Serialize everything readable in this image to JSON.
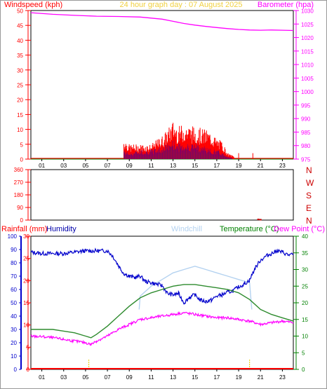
{
  "header": {
    "left_title": "Windspeed (kph)",
    "center_title": "24 hour graph day : 07 August 2025",
    "right_title": "Barometer (hpa)"
  },
  "bottom_header": {
    "rainfall": "Rainfall (mm)",
    "humidity": "Humidity",
    "windchill": "Windchill",
    "temperature": "Temperature (°C)",
    "dewpoint": "Dew Point (°C)"
  },
  "colors": {
    "windspeed": "#ff0000",
    "gust": "#0000cc",
    "average": "#008000",
    "barometer": "#ff00ff",
    "direction": "#cc0000",
    "humidity": "#0000cc",
    "windchill": "#b4d2f0",
    "temperature": "#2e8b2e",
    "dewpoint": "#ff00ff",
    "rainfall": "#ff0000"
  },
  "chart_data": [
    {
      "type": "line",
      "name": "wind-barometer",
      "x_ticks": [
        "01",
        "03",
        "05",
        "07",
        "09",
        "11",
        "13",
        "15",
        "17",
        "19",
        "21",
        "23"
      ],
      "xlim": [
        0,
        24
      ],
      "ylim_left": [
        0,
        50
      ],
      "yticks_left": [
        0,
        5,
        10,
        15,
        20,
        25,
        30,
        35,
        40,
        45,
        50
      ],
      "ylim_right": [
        975,
        1030
      ],
      "yticks_right": [
        975,
        980,
        985,
        990,
        995,
        1000,
        1005,
        1010,
        1015,
        1020,
        1025,
        1030
      ],
      "barometer": {
        "x": [
          0,
          2,
          4,
          6,
          8,
          10,
          12,
          13,
          14,
          15,
          16,
          17,
          18,
          19,
          20,
          21,
          22,
          23,
          24
        ],
        "y": [
          1029.2,
          1028.6,
          1028.2,
          1027.9,
          1027.8,
          1027.6,
          1026.8,
          1026,
          1025.2,
          1024.6,
          1024.1,
          1023.7,
          1023.3,
          1023,
          1022.8,
          1022.7,
          1022.8,
          1022.7,
          1022.6
        ]
      },
      "wind_active_hours": [
        8.5,
        18.6
      ],
      "wind_envelope": {
        "hours": [
          8.5,
          9,
          10,
          11,
          12,
          12.5,
          13,
          13.5,
          14,
          15,
          16,
          16.5,
          17,
          17.5,
          18,
          18.6
        ],
        "gust": [
          7,
          5,
          5,
          5,
          8,
          10,
          13,
          11,
          12,
          11,
          10,
          9,
          7,
          6,
          2,
          1
        ],
        "speed": [
          3,
          2,
          3,
          3,
          4,
          5,
          6,
          5,
          5,
          5,
          4,
          3,
          3,
          2,
          1,
          0
        ],
        "average": [
          1,
          0,
          1,
          1,
          3,
          4,
          5,
          4,
          4,
          3,
          2,
          2,
          1,
          1,
          0,
          0
        ]
      },
      "isolated_spikes": [
        {
          "x": 19,
          "y": 2
        },
        {
          "x": 20.3,
          "y": 2
        }
      ]
    },
    {
      "type": "scatter",
      "name": "wind-direction",
      "x_ticks": [
        "01",
        "03",
        "05",
        "07",
        "09",
        "11",
        "13",
        "15",
        "17",
        "19",
        "21",
        "23"
      ],
      "ylim": [
        0,
        360
      ],
      "yticks": [
        0,
        90,
        180,
        270,
        360
      ],
      "ytick_labels": [
        "0",
        "90",
        "180",
        "270",
        "360"
      ],
      "compass": [
        "N",
        "W",
        "S",
        "E",
        "N"
      ],
      "points": [
        {
          "x": 20.8,
          "y": 5
        },
        {
          "x": 21,
          "y": 3
        }
      ]
    },
    {
      "type": "line",
      "name": "temperature-humidity",
      "x_ticks": [
        "01",
        "03",
        "05",
        "07",
        "09",
        "11",
        "13",
        "15",
        "17",
        "19",
        "21",
        "23"
      ],
      "ylim_humidity": [
        0,
        100
      ],
      "yticks_humidity": [
        0,
        10,
        20,
        30,
        40,
        50,
        60,
        70,
        80,
        90,
        100
      ],
      "ylim_rain": [
        0,
        30
      ],
      "yticks_rain": [
        0,
        5,
        10,
        15,
        20,
        25,
        30
      ],
      "ylim_temp": [
        0,
        40
      ],
      "yticks_temp": [
        0,
        5,
        10,
        15,
        20,
        25,
        30,
        35,
        40
      ],
      "humidity": {
        "x": [
          0,
          1,
          2,
          3,
          4,
          5,
          6,
          7,
          7.5,
          8,
          8.5,
          9,
          9.5,
          10,
          10.5,
          11,
          11.5,
          12,
          12.5,
          13,
          13.5,
          14,
          14.5,
          15,
          15.5,
          16,
          16.5,
          17,
          17.5,
          18,
          18.5,
          19,
          19.5,
          20,
          20.5,
          21,
          21.5,
          22,
          22.5,
          23,
          23.5,
          24
        ],
        "y": [
          88,
          87,
          87,
          87,
          88,
          89,
          89,
          89,
          85,
          78,
          72,
          70,
          69,
          70,
          66,
          65,
          64,
          63,
          57,
          56,
          57,
          50,
          54,
          56,
          52,
          51,
          52,
          55,
          56,
          58,
          59,
          62,
          64,
          67,
          76,
          82,
          85,
          87,
          89,
          88,
          86,
          86
        ]
      },
      "windchill": {
        "x": [
          9.9,
          10,
          11,
          12,
          13,
          14,
          15,
          16,
          17,
          18,
          19,
          20,
          20.2
        ],
        "y": [
          18,
          22,
          25,
          27,
          29,
          30,
          31,
          30,
          29,
          28,
          27,
          26,
          18
        ]
      },
      "temperature": {
        "x": [
          0,
          1,
          2,
          3,
          4,
          5,
          5.5,
          6,
          7,
          8,
          9,
          10,
          11,
          12,
          13,
          14,
          15,
          16,
          17,
          18,
          19,
          20,
          21,
          22,
          23,
          24
        ],
        "y": [
          12,
          12,
          12,
          11.5,
          11,
          10,
          9.5,
          10.5,
          13,
          16,
          19,
          21.5,
          23,
          24,
          25,
          25.5,
          25.5,
          25,
          24.5,
          24,
          23,
          21,
          18,
          16.5,
          15.5,
          14.5
        ]
      },
      "dewpoint": {
        "x": [
          0,
          1,
          2,
          3,
          4,
          5,
          5.5,
          6,
          7,
          8,
          9,
          10,
          11,
          12,
          13,
          14,
          15,
          16,
          17,
          18,
          19,
          20,
          21,
          22,
          23,
          24
        ],
        "y": [
          10,
          9.8,
          9.5,
          9,
          8.5,
          8,
          7.5,
          8.5,
          10,
          12,
          13.5,
          15,
          15.5,
          16,
          16.5,
          17,
          16.5,
          16,
          15.5,
          15.5,
          15,
          14.5,
          13.5,
          14,
          14.5,
          14
        ]
      },
      "rain_markers": [
        5.3,
        20
      ]
    }
  ]
}
